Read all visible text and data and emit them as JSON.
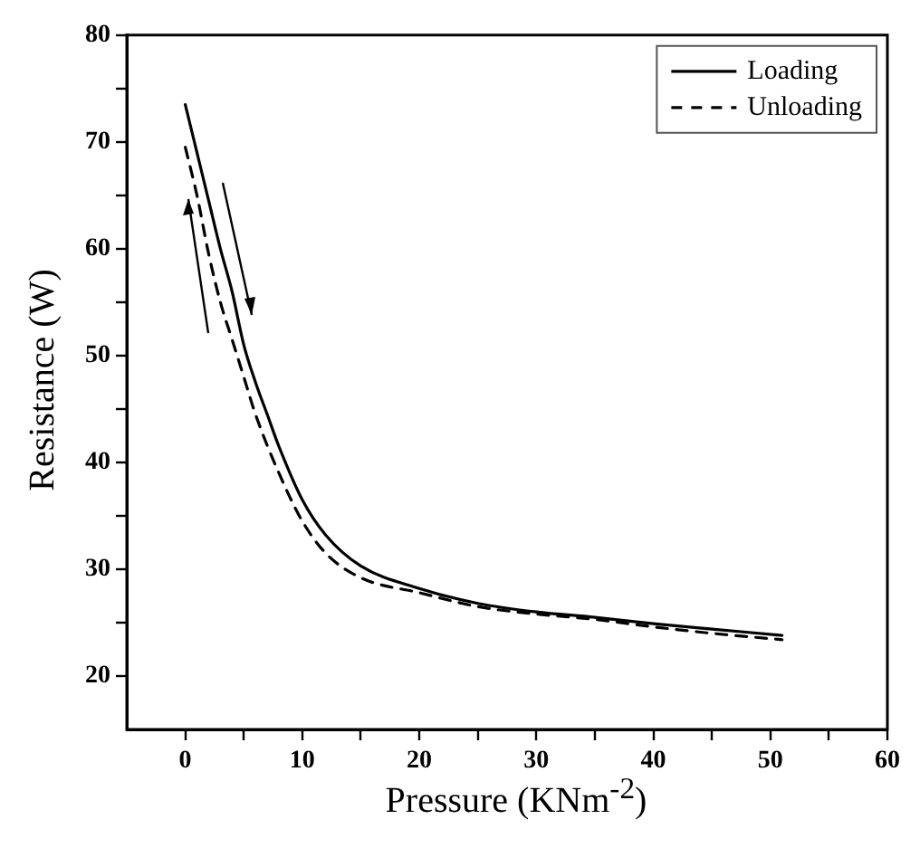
{
  "chart_data": {
    "type": "line",
    "xlabel": "Pressure (KNm$^{-2}$)",
    "ylabel": "Resistance (W)",
    "xlim": [
      -5,
      60
    ],
    "ylim": [
      15,
      80
    ],
    "xticks": [
      0,
      {
        "value": 5,
        "label": null
      },
      10,
      {
        "value": 15,
        "label": null
      },
      20,
      {
        "value": 25,
        "label": null
      },
      30,
      {
        "value": 35,
        "label": null
      },
      40,
      {
        "value": 45,
        "label": null
      },
      50,
      {
        "value": 55,
        "label": null
      },
      60
    ],
    "yticks": [
      20,
      {
        "value": 25,
        "label": null
      },
      30,
      {
        "value": 35,
        "label": null
      },
      40,
      {
        "value": 45,
        "label": null
      },
      50,
      {
        "value": 55,
        "label": null
      },
      60,
      {
        "value": 65,
        "label": null
      },
      70,
      {
        "value": 75,
        "label": null
      },
      80
    ],
    "legend": "top right",
    "marker": "none",
    "grid": false,
    "series": [
      {
        "name": "Loading",
        "color": "#000000",
        "line_style": "solid",
        "x": [
          0,
          1,
          2,
          3,
          4,
          5,
          6,
          7,
          8,
          10,
          12,
          15,
          20,
          25,
          30,
          35,
          40,
          45,
          51
        ],
        "values": [
          73.5,
          69,
          64.5,
          60,
          56,
          51,
          47.5,
          44.5,
          41.5,
          36.5,
          33.2,
          30.3,
          28.2,
          26.8,
          26,
          25.5,
          24.9,
          24.4,
          23.8
        ]
      },
      {
        "name": "Unloading",
        "color": "#000000",
        "line_style": "dashed",
        "x": [
          0,
          1,
          2,
          3,
          4,
          5,
          6,
          8,
          10,
          12,
          15,
          20,
          25,
          30,
          35,
          40,
          45,
          51
        ],
        "values": [
          69.5,
          65,
          59.5,
          55,
          51.5,
          48,
          44.5,
          39,
          34.5,
          31.5,
          29.2,
          27.8,
          26.5,
          25.8,
          25.3,
          24.6,
          24,
          23.4
        ]
      }
    ]
  }
}
